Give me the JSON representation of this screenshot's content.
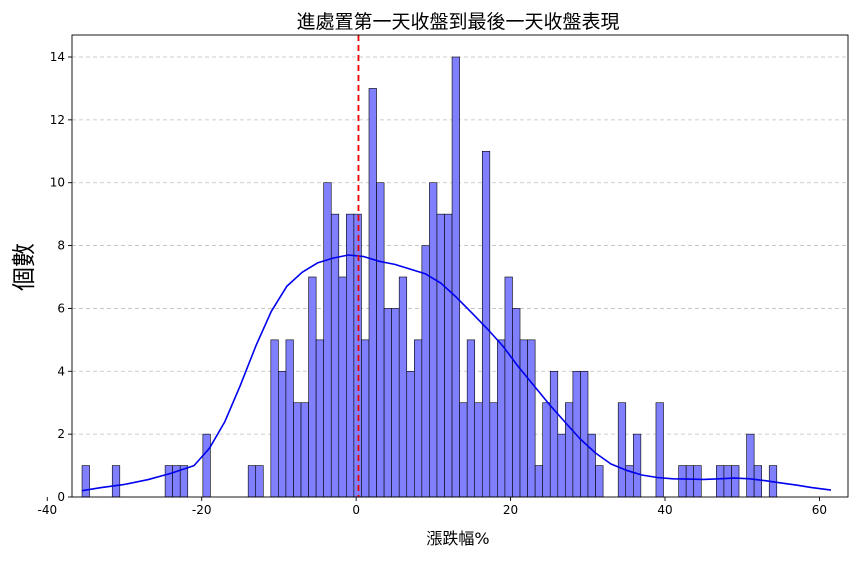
{
  "chart_data": {
    "type": "bar",
    "title": "進處置第一天收盤到最後一天收盤表現",
    "xlabel": "漲跌幅%",
    "ylabel": "個數",
    "xlim": [
      -36.8,
      63.7
    ],
    "ylim": [
      0,
      14.7
    ],
    "xticks": [
      -40,
      -20,
      0,
      20,
      40,
      60
    ],
    "yticks": [
      0,
      2,
      4,
      6,
      8,
      10,
      12,
      14
    ],
    "grid": "y-dashed",
    "bin_width": 0.978,
    "bin_start": -35.5,
    "counts": [
      1,
      0,
      0,
      0,
      1,
      0,
      0,
      0,
      0,
      0,
      0,
      1,
      1,
      1,
      0,
      0,
      2,
      0,
      0,
      0,
      0,
      0,
      1,
      1,
      0,
      5,
      4,
      5,
      3,
      3,
      7,
      5,
      10,
      9,
      7,
      9,
      9,
      5,
      13,
      10,
      6,
      6,
      7,
      4,
      5,
      8,
      10,
      9,
      9,
      14,
      3,
      5,
      3,
      11,
      3,
      5,
      7,
      6,
      5,
      5,
      1,
      3,
      4,
      2,
      3,
      4,
      4,
      2,
      1,
      0,
      0,
      3,
      1,
      2,
      0,
      0,
      3,
      0,
      0,
      1,
      1,
      1,
      0,
      0,
      1,
      1,
      1,
      0,
      2,
      1,
      0,
      1
    ],
    "kde": {
      "x": [
        -35.5,
        -33,
        -30,
        -27,
        -24,
        -21,
        -19,
        -17,
        -15,
        -13,
        -11,
        -9,
        -7,
        -5,
        -3,
        -1,
        1,
        3,
        5,
        7,
        9,
        11,
        13,
        15,
        17,
        19,
        21,
        23,
        25,
        27,
        29,
        31,
        33,
        35,
        37,
        39,
        41,
        43,
        45,
        47,
        49,
        51,
        53,
        55,
        57,
        59,
        61.5
      ],
      "y": [
        0.2,
        0.3,
        0.4,
        0.55,
        0.75,
        1.0,
        1.55,
        2.4,
        3.55,
        4.8,
        5.9,
        6.7,
        7.15,
        7.45,
        7.6,
        7.7,
        7.65,
        7.5,
        7.4,
        7.25,
        7.1,
        6.8,
        6.35,
        5.85,
        5.35,
        4.8,
        4.15,
        3.55,
        2.95,
        2.4,
        1.85,
        1.4,
        1.05,
        0.85,
        0.7,
        0.62,
        0.58,
        0.57,
        0.56,
        0.58,
        0.6,
        0.58,
        0.52,
        0.45,
        0.38,
        0.3,
        0.22
      ]
    },
    "vline_x": 0.3,
    "colors": {
      "bar_fill": "#8080ff",
      "bar_edge": "#000000",
      "kde_line": "#0000ee",
      "vline": "#ee0000",
      "grid": "#bfbfbf"
    }
  }
}
